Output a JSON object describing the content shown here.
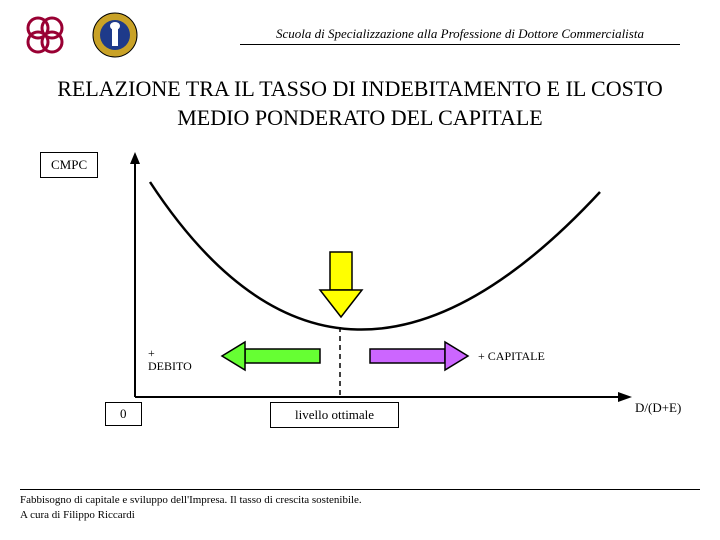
{
  "header": {
    "institution": "Scuola di Specializzazione alla Professione di Dottore Commercialista"
  },
  "title": "RELAZIONE TRA IL TASSO DI INDEBITAMENTO E IL COSTO MEDIO PONDERATO DEL CAPITALE",
  "chart": {
    "y_label": "CMPC",
    "origin_label": "0",
    "x_right_label": "D/(D+E)",
    "optimal_label": "livello ottimale",
    "left_arrow_label": "+ DEBITO",
    "right_arrow_label": "+ CAPITALE",
    "curve_color": "#000000",
    "curve_width": 2.5,
    "down_arrow_fill": "#ffff00",
    "down_arrow_stroke": "#000000",
    "left_arrow_fill": "#66ff33",
    "right_arrow_fill": "#cc66ff",
    "arrow_stroke": "#000000",
    "axis_color": "#000000",
    "dashed_color": "#000000",
    "logo1_color": "#990033",
    "logo2_ring": "#c9a227",
    "logo2_inner": "#1e3a8a"
  },
  "footer": {
    "line1": "Fabbisogno di capitale e sviluppo dell'Impresa. Il tasso di crescita sostenibile.",
    "line2": "A cura di Filippo Riccardi"
  }
}
